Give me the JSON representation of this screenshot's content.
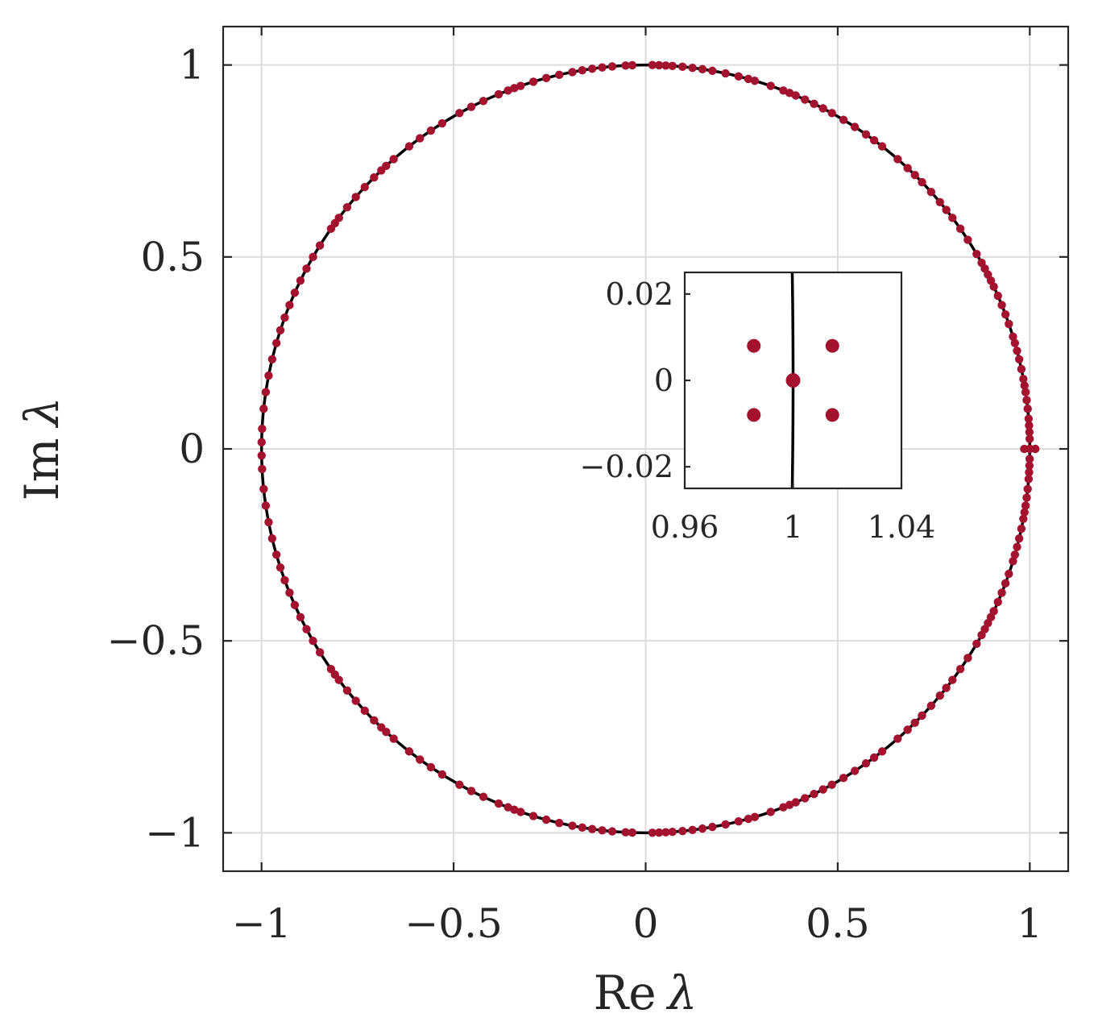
{
  "colors": {
    "curve": "#000000",
    "points": "#a3122f",
    "grid": "#dcdcdc",
    "frame": "#262626",
    "text": "#262626"
  },
  "chart_data": [
    {
      "type": "scatter",
      "role": "main",
      "title": "",
      "xlabel": "Re λ",
      "ylabel": "Im λ",
      "xlabel_parts": {
        "re": "Re",
        "sym": "λ"
      },
      "ylabel_parts": {
        "im": "Im",
        "sym": "λ"
      },
      "xlim": [
        -1.1,
        1.1
      ],
      "ylim": [
        -1.1,
        1.1
      ],
      "xticks": [
        -1,
        -0.5,
        0,
        0.5,
        1
      ],
      "yticks": [
        -1,
        -0.5,
        0,
        0.5,
        1
      ],
      "xtick_labels": [
        "−1",
        "−0.5",
        "0",
        "0.5",
        "1"
      ],
      "ytick_labels": [
        "−1",
        "−0.5",
        "0",
        "0.5",
        "1"
      ],
      "grid": true,
      "curve": {
        "shape": "unit circle",
        "center": [
          0,
          0
        ],
        "radius": 1
      },
      "series": [
        {
          "marker": "dot",
          "angles_deg": [
            0,
            0,
            0,
            0,
            1.5,
            2.5,
            3.5,
            4.5,
            6,
            7.3,
            8.5,
            9.5,
            10.5,
            12,
            13.5,
            14.8,
            16,
            17,
            19,
            20.5,
            22,
            23.5,
            25,
            26,
            27,
            28,
            29,
            30.5,
            33,
            35,
            37,
            38.5,
            40,
            42,
            44,
            45.5,
            47,
            49,
            52,
            53.5,
            55,
            57,
            59,
            61,
            62.5,
            64,
            65.5,
            67,
            68,
            69,
            71,
            73.5,
            74.5,
            76,
            78,
            80,
            81.5,
            83,
            84.5,
            86,
            87,
            88,
            89,
            92,
            93,
            95,
            96.5,
            98,
            99.5,
            101,
            103,
            105,
            107,
            109,
            110,
            111,
            112.5,
            115,
            117,
            119,
            122,
            124,
            126,
            128,
            131,
            132.5,
            133.5,
            135,
            137,
            139,
            141,
            143,
            144,
            145,
            148,
            150,
            152,
            154,
            156,
            158,
            160,
            162,
            164,
            166.5,
            169,
            171.5,
            174,
            177,
            179
          ]
        }
      ]
    },
    {
      "type": "scatter",
      "role": "inset",
      "title": "",
      "xlabel": "",
      "ylabel": "",
      "xlim": [
        0.96,
        1.04
      ],
      "ylim": [
        -0.025,
        0.025
      ],
      "xticks": [
        0.96,
        1,
        1.04
      ],
      "yticks": [
        -0.02,
        0,
        0.02
      ],
      "xtick_labels": [
        "0.96",
        "1",
        "1.04"
      ],
      "ytick_labels": [
        "−0.02",
        "0",
        "0.02"
      ],
      "grid": false,
      "curve": {
        "shape": "unit circle",
        "center": [
          0,
          0
        ],
        "radius": 1
      },
      "series": [
        {
          "marker": "dot",
          "points": [
            {
              "x": 0.9855,
              "y": 0.008
            },
            {
              "x": 1.0145,
              "y": 0.008
            },
            {
              "x": 1.0,
              "y": 0.0
            },
            {
              "x": 0.9855,
              "y": -0.008
            },
            {
              "x": 1.0145,
              "y": -0.008
            }
          ]
        }
      ]
    }
  ]
}
